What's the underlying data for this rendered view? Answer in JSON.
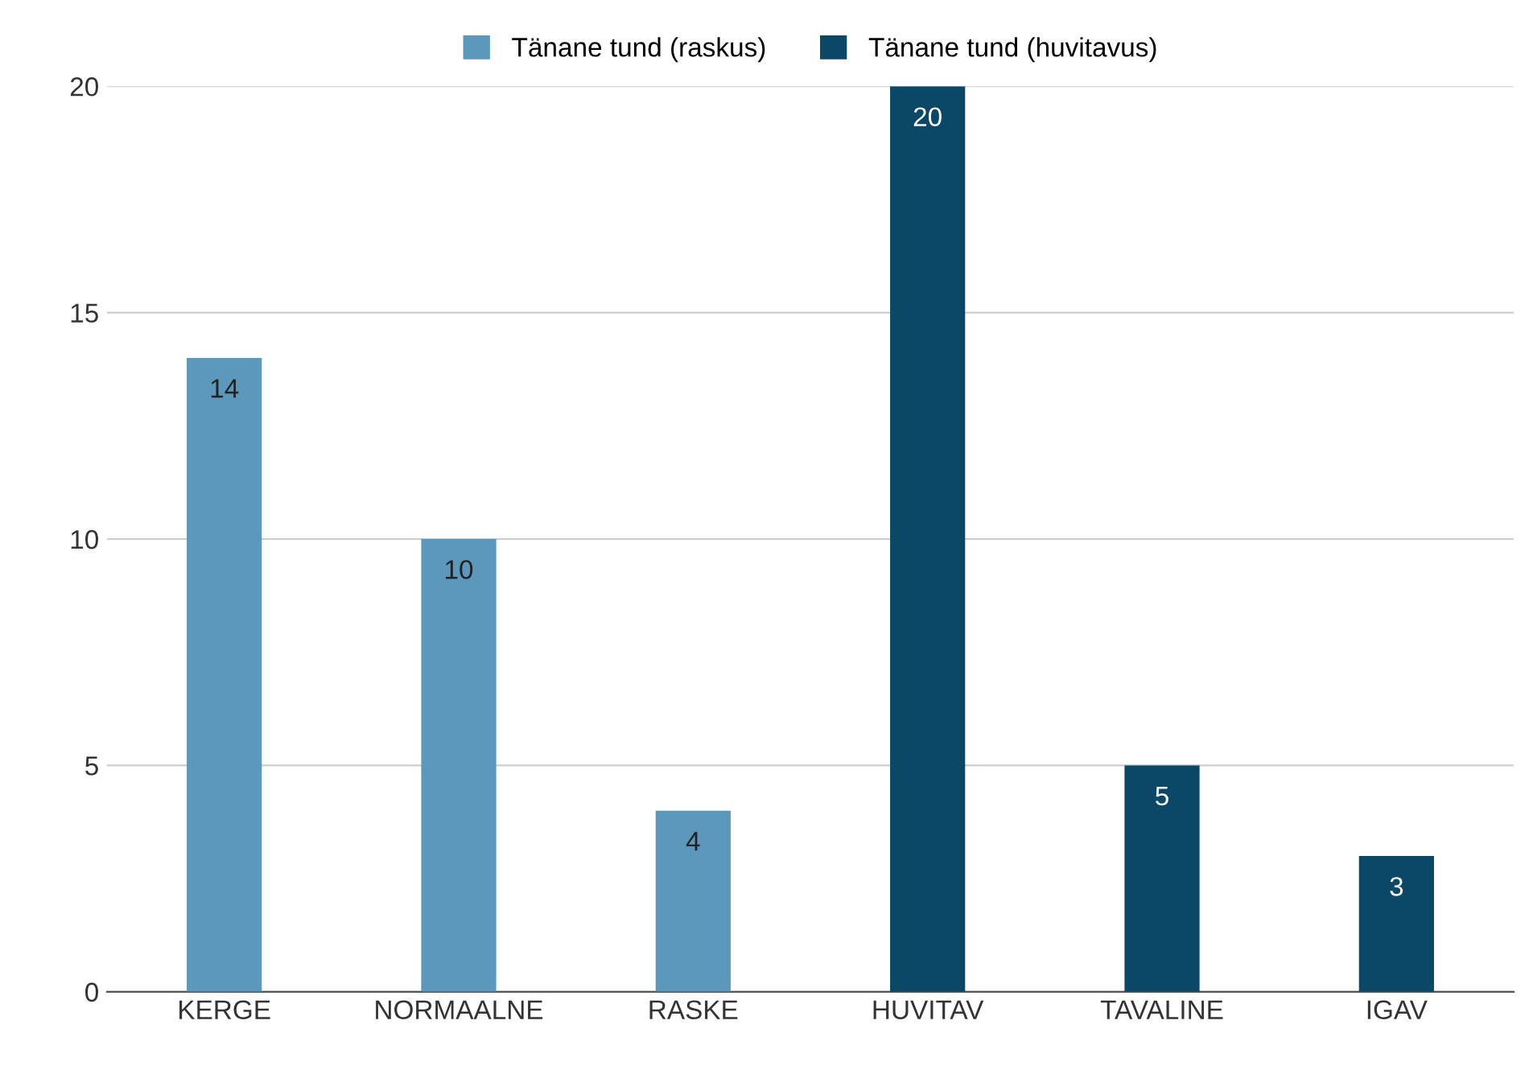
{
  "chart_data": {
    "type": "bar",
    "categories": [
      "KERGE",
      "NORMAALNE",
      "RASKE",
      "HUVITAV",
      "TAVALINE",
      "IGAV"
    ],
    "series": [
      {
        "name": "Tänane tund (raskus)",
        "color": "#5b98bb",
        "values": [
          14,
          10,
          4,
          null,
          null,
          null
        ]
      },
      {
        "name": "Tänane tund (huvitavus)",
        "color": "#0b4868",
        "values": [
          null,
          null,
          null,
          20,
          5,
          3
        ]
      }
    ],
    "ylim": [
      0,
      20
    ],
    "yticks": [
      0,
      5,
      10,
      15,
      20
    ],
    "grid": "y",
    "legend": "top",
    "data_labels": true
  }
}
